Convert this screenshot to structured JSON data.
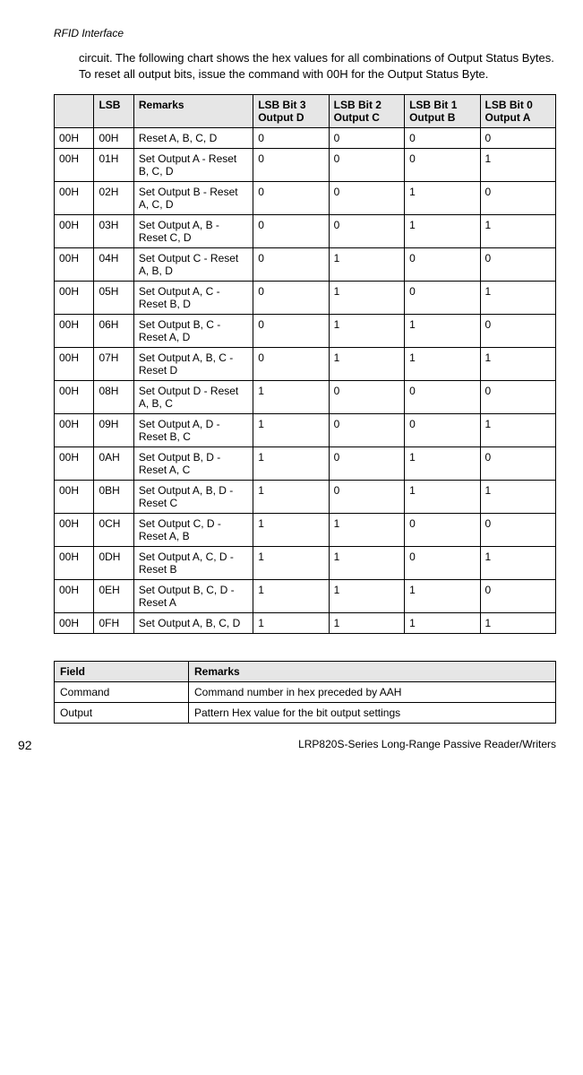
{
  "header": "RFID Interface",
  "intro": "circuit.  The following chart shows the hex values for all combinations of Output Status Bytes.  To reset all output bits, issue the command with 00H for the Output Status Byte.",
  "main_table": {
    "headers": [
      "",
      "LSB",
      "Remarks",
      "LSB Bit 3 Output D",
      "LSB Bit 2 Output C",
      "LSB Bit 1 Output B",
      "LSB Bit 0 Output A"
    ],
    "rows": [
      [
        "00H",
        "00H",
        "Reset A, B, C, D",
        "0",
        "0",
        "0",
        "0"
      ],
      [
        "00H",
        "01H",
        "Set Output A - Reset B, C, D",
        "0",
        "0",
        "0",
        "1"
      ],
      [
        "00H",
        "02H",
        "Set Output B - Reset A, C, D",
        "0",
        "0",
        "1",
        "0"
      ],
      [
        "00H",
        "03H",
        "Set Output A, B - Reset C, D",
        "0",
        "0",
        "1",
        "1"
      ],
      [
        "00H",
        "04H",
        "Set Output C - Reset A, B, D",
        "0",
        "1",
        "0",
        "0"
      ],
      [
        "00H",
        "05H",
        "Set Output A, C - Reset B, D",
        "0",
        "1",
        "0",
        "1"
      ],
      [
        "00H",
        "06H",
        "Set Output B, C - Reset A, D",
        "0",
        "1",
        "1",
        "0"
      ],
      [
        "00H",
        "07H",
        "Set Output A, B, C - Reset D",
        "0",
        "1",
        "1",
        "1"
      ],
      [
        "00H",
        "08H",
        "Set Output D - Reset A, B, C",
        "1",
        "0",
        "0",
        "0"
      ],
      [
        "00H",
        "09H",
        "Set Output A, D - Reset B, C",
        "1",
        "0",
        "0",
        "1"
      ],
      [
        "00H",
        "0AH",
        "Set Output B, D - Reset A, C",
        "1",
        "0",
        "1",
        "0"
      ],
      [
        "00H",
        "0BH",
        "Set Output A, B, D - Reset C",
        "1",
        "0",
        "1",
        "1"
      ],
      [
        "00H",
        "0CH",
        "Set Output C, D - Reset A, B",
        "1",
        "1",
        "0",
        "0"
      ],
      [
        "00H",
        "0DH",
        "Set Output A, C, D - Reset B",
        "1",
        "1",
        "0",
        "1"
      ],
      [
        "00H",
        "0EH",
        "Set Output B, C, D - Reset A",
        "1",
        "1",
        "1",
        "0"
      ],
      [
        "00H",
        "0FH",
        "Set Output A, B, C, D",
        "1",
        "1",
        "1",
        "1"
      ]
    ]
  },
  "small_table": {
    "headers": [
      "Field",
      "Remarks"
    ],
    "rows": [
      [
        "Command",
        "Command number in hex preceded by AAH"
      ],
      [
        "Output",
        "Pattern Hex value for the bit output settings"
      ]
    ]
  },
  "footer": {
    "page": "92",
    "title": "LRP820S-Series Long-Range Passive Reader/Writers"
  }
}
